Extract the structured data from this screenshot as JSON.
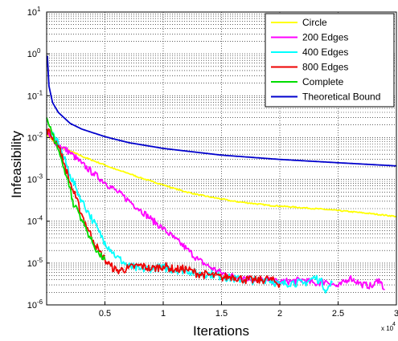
{
  "chart_data": {
    "type": "line",
    "title": "",
    "xlabel": "Iterations",
    "ylabel": "Infeasibility",
    "x_multiplier_label": "x 10",
    "x_multiplier_exponent": "4",
    "xlim": [
      0,
      30000
    ],
    "ylim": [
      1e-06,
      10
    ],
    "y_scale": "log",
    "grid": "dotted, on",
    "legend_position": "top-right",
    "x_ticks": [
      {
        "value": 5000,
        "label": "0.5"
      },
      {
        "value": 10000,
        "label": "1"
      },
      {
        "value": 15000,
        "label": "1.5"
      },
      {
        "value": 20000,
        "label": "2"
      },
      {
        "value": 25000,
        "label": "2.5"
      },
      {
        "value": 30000,
        "label": "3"
      }
    ],
    "y_ticks": [
      {
        "value": 1e-06,
        "base": "10",
        "exp": "-6"
      },
      {
        "value": 1e-05,
        "base": "10",
        "exp": "-5"
      },
      {
        "value": 0.0001,
        "base": "10",
        "exp": "-4"
      },
      {
        "value": 0.001,
        "base": "10",
        "exp": "-3"
      },
      {
        "value": 0.01,
        "base": "10",
        "exp": "-2"
      },
      {
        "value": 0.1,
        "base": "10",
        "exp": "-1"
      },
      {
        "value": 1,
        "base": "10",
        "exp": "0"
      },
      {
        "value": 10,
        "base": "10",
        "exp": "1"
      }
    ],
    "series": [
      {
        "name": "Circle",
        "color": "#ffff00",
        "noise": 0.015,
        "points": [
          [
            0,
            0.012
          ],
          [
            1000,
            0.0063
          ],
          [
            2000,
            0.0048
          ],
          [
            3000,
            0.0036
          ],
          [
            4000,
            0.0028
          ],
          [
            5000,
            0.0022
          ],
          [
            6000,
            0.0017
          ],
          [
            7000,
            0.0014
          ],
          [
            8000,
            0.0011
          ],
          [
            9000,
            0.0009
          ],
          [
            10000,
            0.00074
          ],
          [
            11000,
            0.0006
          ],
          [
            12000,
            0.0005
          ],
          [
            13000,
            0.00043
          ],
          [
            14000,
            0.00038
          ],
          [
            15000,
            0.00034
          ],
          [
            16000,
            0.0003
          ],
          [
            17000,
            0.00028
          ],
          [
            18000,
            0.00026
          ],
          [
            19000,
            0.00024
          ],
          [
            20000,
            0.00023
          ],
          [
            22000,
            0.00021
          ],
          [
            24000,
            0.00019
          ],
          [
            26000,
            0.00017
          ],
          [
            28000,
            0.00015
          ],
          [
            30000,
            0.00013
          ]
        ]
      },
      {
        "name": "200 Edges",
        "color": "#ff00ff",
        "noise": 0.08,
        "points": [
          [
            0,
            0.012
          ],
          [
            1000,
            0.0068
          ],
          [
            2000,
            0.0044
          ],
          [
            3000,
            0.0024
          ],
          [
            4000,
            0.0014
          ],
          [
            5000,
            0.00085
          ],
          [
            6000,
            0.00052
          ],
          [
            7000,
            0.00032
          ],
          [
            8000,
            0.00019
          ],
          [
            9000,
            0.00011
          ],
          [
            10000,
            6.6e-05
          ],
          [
            11000,
            3.8e-05
          ],
          [
            12000,
            2.2e-05
          ],
          [
            13000,
            1.2e-05
          ],
          [
            14000,
            8e-06
          ],
          [
            15000,
            5.8e-06
          ],
          [
            16000,
            4.8e-06
          ],
          [
            17000,
            4.5e-06
          ],
          [
            18000,
            4e-06
          ],
          [
            19000,
            3.8e-06
          ],
          [
            20000,
            3.6e-06
          ],
          [
            21000,
            3.7e-06
          ],
          [
            22000,
            4e-06
          ],
          [
            23000,
            3.2e-06
          ],
          [
            24000,
            3.7e-06
          ],
          [
            25000,
            2.7e-06
          ],
          [
            26000,
            4.5e-06
          ],
          [
            27000,
            3.1e-06
          ],
          [
            28000,
            2.8e-06
          ],
          [
            28500,
            4.2e-06
          ],
          [
            29000,
            2.3e-06
          ]
        ]
      },
      {
        "name": "400 Edges",
        "color": "#00ffff",
        "noise": 0.1,
        "points": [
          [
            0,
            0.016
          ],
          [
            1000,
            0.0075
          ],
          [
            1500,
            0.0032
          ],
          [
            2000,
            0.0013
          ],
          [
            2500,
            0.00063
          ],
          [
            3000,
            0.00032
          ],
          [
            3500,
            0.00018
          ],
          [
            4000,
            0.0001
          ],
          [
            4500,
            5.5e-05
          ],
          [
            5000,
            3.2e-05
          ],
          [
            5500,
            2.1e-05
          ],
          [
            6000,
            1.4e-05
          ],
          [
            7000,
            8.5e-06
          ],
          [
            8000,
            7e-06
          ],
          [
            9000,
            7.5e-06
          ],
          [
            10000,
            7.8e-06
          ],
          [
            11000,
            6.8e-06
          ],
          [
            12000,
            6.8e-06
          ],
          [
            13000,
            5.5e-06
          ],
          [
            14000,
            5.5e-06
          ],
          [
            15000,
            4.8e-06
          ],
          [
            16000,
            4.2e-06
          ],
          [
            17000,
            4e-06
          ],
          [
            18000,
            3.8e-06
          ],
          [
            19000,
            4.2e-06
          ],
          [
            20000,
            3e-06
          ],
          [
            21000,
            3.5e-06
          ],
          [
            22000,
            3.2e-06
          ],
          [
            23000,
            4.5e-06
          ],
          [
            23500,
            3.8e-06
          ],
          [
            24000,
            2.2e-06
          ],
          [
            24500,
            3.4e-06
          ]
        ]
      },
      {
        "name": "800 Edges",
        "color": "#ee0000",
        "noise": 0.1,
        "points": [
          [
            0,
            0.016
          ],
          [
            1000,
            0.0065
          ],
          [
            1500,
            0.0024
          ],
          [
            2000,
            0.00085
          ],
          [
            2500,
            0.00036
          ],
          [
            3000,
            0.00015
          ],
          [
            3500,
            7e-05
          ],
          [
            4000,
            3.5e-05
          ],
          [
            4500,
            1.9e-05
          ],
          [
            5000,
            1.2e-05
          ],
          [
            5500,
            8.5e-06
          ],
          [
            6000,
            6.5e-06
          ],
          [
            7000,
            7.5e-06
          ],
          [
            8000,
            8.8e-06
          ],
          [
            9000,
            7.2e-06
          ],
          [
            10000,
            8.5e-06
          ],
          [
            11000,
            7e-06
          ],
          [
            12000,
            7.2e-06
          ],
          [
            13000,
            5.5e-06
          ],
          [
            14000,
            5.2e-06
          ],
          [
            15000,
            4.5e-06
          ],
          [
            16000,
            4.8e-06
          ],
          [
            17000,
            4e-06
          ],
          [
            18000,
            3.8e-06
          ],
          [
            19000,
            4.2e-06
          ],
          [
            20000,
            3.2e-06
          ]
        ]
      },
      {
        "name": "Complete",
        "color": "#00dd00",
        "noise": 0.08,
        "points": [
          [
            0,
            0.03
          ],
          [
            500,
            0.012
          ],
          [
            1000,
            0.0052
          ],
          [
            1500,
            0.0018
          ],
          [
            2000,
            0.00065
          ],
          [
            2300,
            0.00022
          ],
          [
            2500,
            0.00024
          ],
          [
            3000,
            0.00011
          ],
          [
            3500,
            5.5e-05
          ],
          [
            4000,
            2.8e-05
          ],
          [
            4500,
            1.6e-05
          ],
          [
            5000,
            1.2e-05
          ]
        ]
      },
      {
        "name": "Theoretical Bound",
        "color": "#0000cc",
        "noise": 0,
        "points": [
          [
            60,
            0.9
          ],
          [
            200,
            0.17
          ],
          [
            500,
            0.069
          ],
          [
            1000,
            0.04
          ],
          [
            2000,
            0.022
          ],
          [
            3000,
            0.016
          ],
          [
            5000,
            0.0105
          ],
          [
            7000,
            0.0076
          ],
          [
            10000,
            0.0055
          ],
          [
            15000,
            0.0038
          ],
          [
            20000,
            0.003
          ],
          [
            25000,
            0.0025
          ],
          [
            30000,
            0.0021
          ]
        ]
      }
    ]
  }
}
